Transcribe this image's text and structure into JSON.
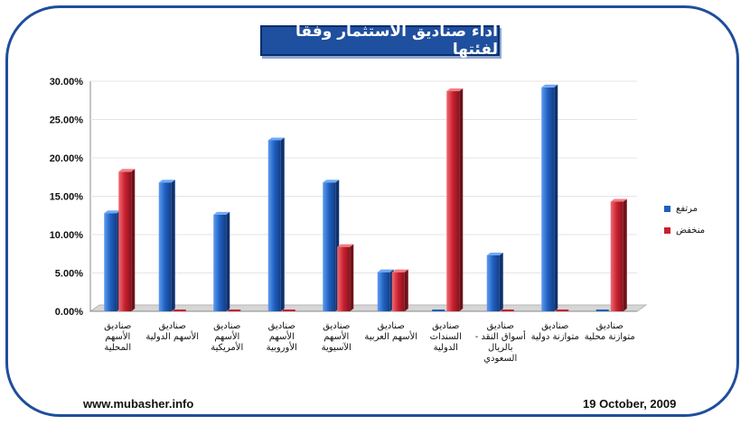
{
  "footer": {
    "website": "www.mubasher.info",
    "date": "19 October, 2009"
  },
  "chart_data": {
    "type": "bar",
    "title": "اداء صناديق الاستثمار وفقا لفئتها",
    "categories": [
      "صناديق الأسهم المحلية",
      "صناديق الأسهم الدولية",
      "صناديق الأسهم الأمريكية",
      "صناديق الأسهم الأوروبية",
      "صناديق الأسهم الآسيوية",
      "صناديق الأسهم العربية",
      "صناديق السندات الدولية",
      "صناديق أسواق النقد - بالريال السعودي",
      "صناديق متوازنة دولية",
      "صناديق متوازنة محلية"
    ],
    "series": [
      {
        "name": "مرتفع",
        "color": "#1f5fbf",
        "values": [
          12.8,
          16.8,
          12.6,
          22.3,
          16.8,
          5.1,
          0,
          7.3,
          29.2,
          0
        ]
      },
      {
        "name": "منخفض",
        "color": "#c8202f",
        "values": [
          18.2,
          0,
          0,
          0,
          8.4,
          5.1,
          28.7,
          0,
          0,
          14.3
        ]
      }
    ],
    "y_ticks": [
      "0.00%",
      "5.00%",
      "10.00%",
      "15.00%",
      "20.00%",
      "25.00%",
      "30.00%"
    ],
    "ylim": [
      0,
      30
    ],
    "legend_position": "right"
  }
}
